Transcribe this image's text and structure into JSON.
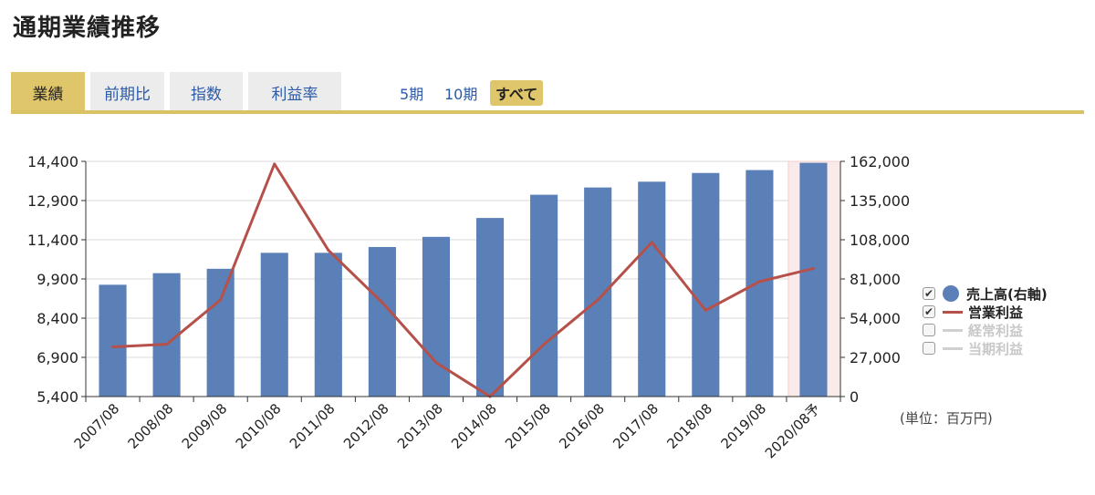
{
  "page": {
    "title": "通期業績推移"
  },
  "tabs": [
    {
      "label": "業績",
      "active": true
    },
    {
      "label": "前期比",
      "active": false
    },
    {
      "label": "指数",
      "active": false
    },
    {
      "label": "利益率",
      "active": false
    }
  ],
  "periods": [
    {
      "label": "5期",
      "active": false
    },
    {
      "label": "10期",
      "active": false
    },
    {
      "label": "すべて",
      "active": true
    }
  ],
  "unit_label": "(単位：百万円)",
  "colors": {
    "bar": "#5b80b8",
    "line": "#b5514a",
    "accent": "#e0c66a",
    "forecast_bg": "#fbeaea"
  },
  "legend": [
    {
      "label": "売上高(右軸)",
      "checked": true,
      "marker": "dot",
      "color": "#5b80b8"
    },
    {
      "label": "営業利益",
      "checked": true,
      "marker": "line",
      "color": "#b5514a"
    },
    {
      "label": "経常利益",
      "checked": false,
      "marker": "line",
      "color": "#d0d0d0"
    },
    {
      "label": "当期利益",
      "checked": false,
      "marker": "line",
      "color": "#d0d0d0"
    }
  ],
  "chart_data": {
    "type": "bar",
    "categories": [
      "2007/08",
      "2008/08",
      "2009/08",
      "2010/08",
      "2011/08",
      "2012/08",
      "2013/08",
      "2014/08",
      "2015/08",
      "2016/08",
      "2017/08",
      "2018/08",
      "2019/08",
      "2020/08予"
    ],
    "left_axis": {
      "ticks": [
        "5,400",
        "6,900",
        "8,400",
        "9,900",
        "11,400",
        "12,900",
        "14,400"
      ],
      "min": 5400,
      "max": 14400
    },
    "right_axis": {
      "ticks": [
        "0",
        "27,000",
        "54,000",
        "81,000",
        "108,000",
        "135,000",
        "162,000"
      ],
      "min": 0,
      "max": 162000
    },
    "series": [
      {
        "name": "売上高(右軸)",
        "type": "bar",
        "axis": "right",
        "values": [
          77000,
          85000,
          88000,
          99000,
          99000,
          103000,
          110000,
          123000,
          139000,
          144000,
          148000,
          154000,
          156000,
          161000
        ]
      },
      {
        "name": "営業利益",
        "type": "line",
        "axis": "left",
        "values": [
          7300,
          7400,
          9100,
          14300,
          11000,
          9000,
          6700,
          5400,
          7400,
          9100,
          11300,
          8700,
          9800,
          10300
        ]
      }
    ],
    "forecast_category": "2020/08予",
    "grid": true,
    "legend_position": "right"
  }
}
